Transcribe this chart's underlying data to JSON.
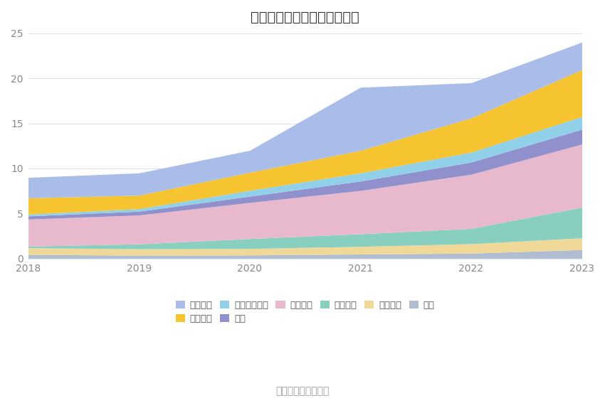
{
  "title": "历年主要资产堆积图（亿元）",
  "source": "数据来源：恒生聚源",
  "years": [
    2018,
    2019,
    2020,
    2021,
    2022,
    2023
  ],
  "series": [
    {
      "name": "其它",
      "color": "#b0bcd0",
      "values": [
        0.45,
        0.38,
        0.4,
        0.5,
        0.6,
        1.0
      ]
    },
    {
      "name": "无形资产",
      "color": "#f0d898",
      "values": [
        0.75,
        0.7,
        0.72,
        0.85,
        1.05,
        1.3
      ]
    },
    {
      "name": "在建工程",
      "color": "#88cfc0",
      "values": [
        0.18,
        0.55,
        1.1,
        1.4,
        1.7,
        3.4
      ]
    },
    {
      "name": "固定资产",
      "color": "#e8b8cc",
      "values": [
        3.0,
        3.2,
        4.0,
        4.8,
        6.0,
        7.0
      ]
    },
    {
      "name": "存货",
      "color": "#9090cc",
      "values": [
        0.35,
        0.42,
        0.7,
        1.05,
        1.35,
        1.65
      ]
    },
    {
      "name": "应收款项融资",
      "color": "#90d0e8",
      "values": [
        0.2,
        0.28,
        0.65,
        0.9,
        1.1,
        1.4
      ]
    },
    {
      "name": "应收账款",
      "color": "#f5c430",
      "values": [
        1.8,
        1.5,
        2.0,
        2.5,
        3.8,
        5.2
      ]
    },
    {
      "name": "货币资金",
      "color": "#aabce8",
      "values": [
        2.27,
        2.47,
        2.43,
        7.0,
        3.9,
        3.05
      ]
    }
  ],
  "ylim": [
    0,
    25
  ],
  "yticks": [
    0,
    5,
    10,
    15,
    20,
    25
  ],
  "background_color": "#ffffff",
  "grid_color": "#dde2ef",
  "title_fontsize": 14,
  "tick_fontsize": 10,
  "legend_fontsize": 9.5,
  "source_fontsize": 10
}
